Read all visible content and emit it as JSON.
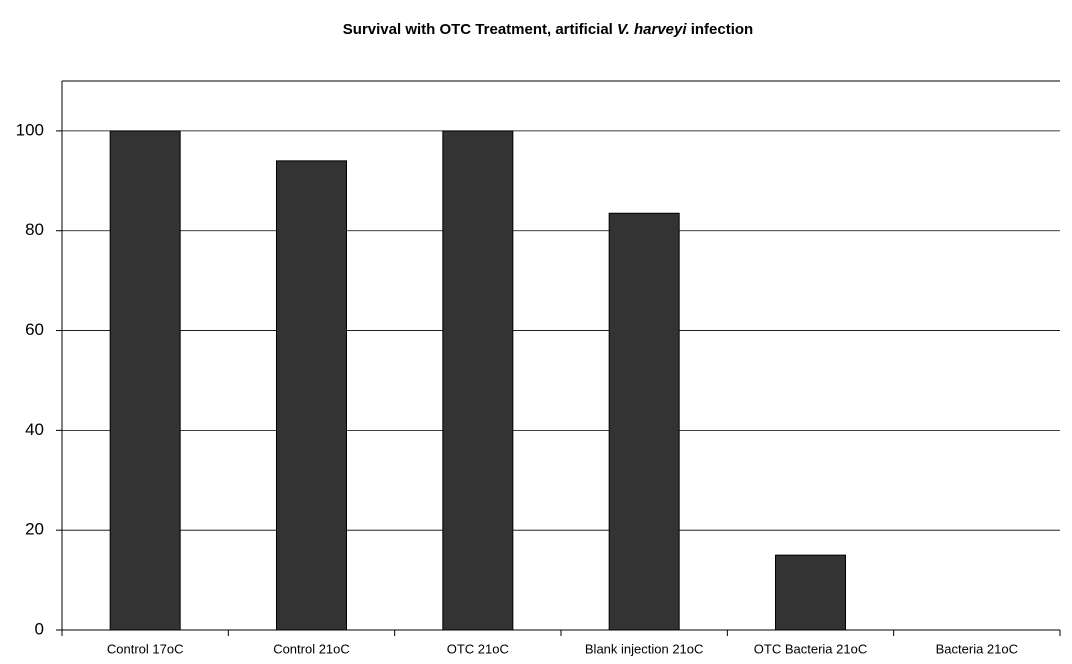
{
  "chart_data": {
    "type": "bar",
    "title": [
      "Survival with OTC Treatment, artificial ",
      "V. harveyi",
      " infection"
    ],
    "categories": [
      "Control 17oC",
      "Control 21oC",
      "OTC 21oC",
      "Blank injection 21oC",
      "OTC Bacteria 21oC",
      "Bacteria 21oC"
    ],
    "values": [
      100,
      94,
      100,
      83.5,
      15,
      0
    ],
    "color": "#333333",
    "ylim": [
      0,
      110
    ],
    "yticks": [
      0,
      20,
      40,
      60,
      80,
      100
    ],
    "grid": true
  }
}
